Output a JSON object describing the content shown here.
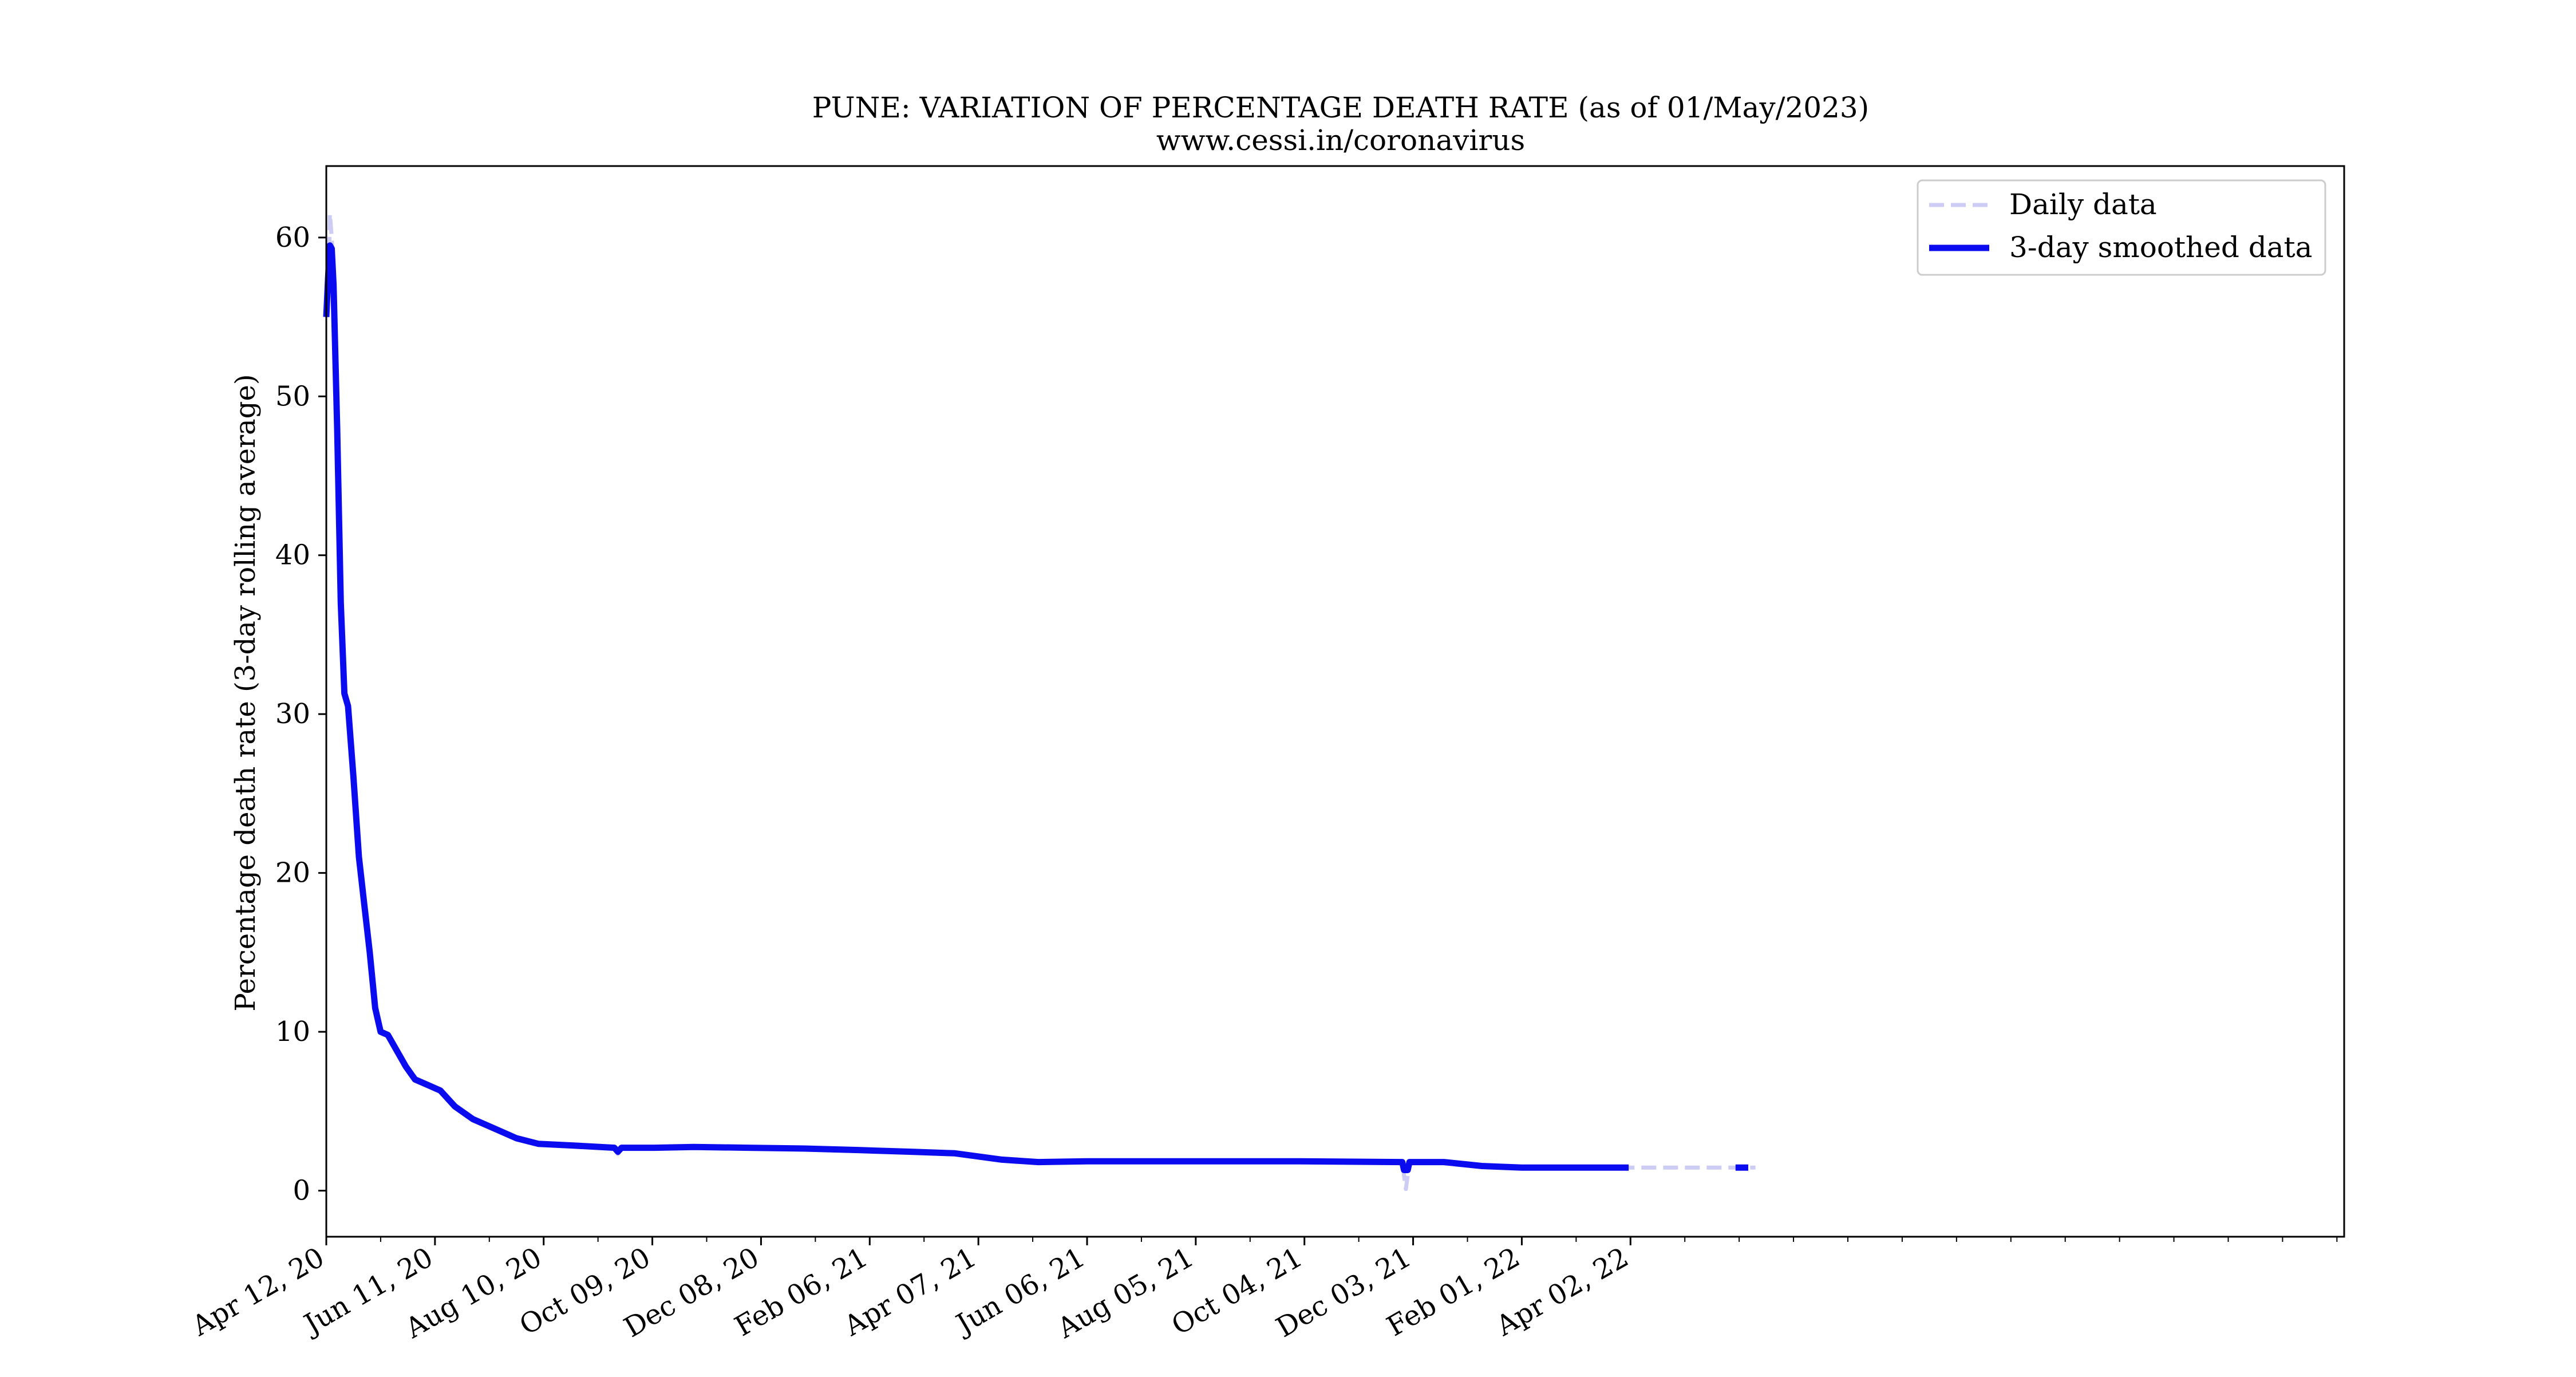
{
  "chart_data": {
    "type": "line",
    "title": "PUNE: VARIATION OF PERCENTAGE DEATH RATE (as of 01/May/2023)",
    "subtitle": "www.cessi.in/coronavirus",
    "xlabel": "",
    "ylabel": "Percentage death rate (3-day rolling average)",
    "x_tick_labels": [
      "Apr 12, 20",
      "Jun 11, 20",
      "Aug 10, 20",
      "Oct 09, 20",
      "Dec 08, 20",
      "Feb 06, 21",
      "Apr 07, 21",
      "Jun 06, 21",
      "Aug 05, 21",
      "Oct 04, 21",
      "Dec 03, 21",
      "Feb 01, 22",
      "Apr 02, 22"
    ],
    "x_tick_dates": [
      "2020-04-12",
      "2020-06-11",
      "2020-08-10",
      "2020-10-09",
      "2020-12-08",
      "2021-02-06",
      "2021-04-07",
      "2021-06-06",
      "2021-08-05",
      "2021-10-04",
      "2021-12-03",
      "2022-02-01",
      "2022-04-02"
    ],
    "xlim": [
      "2020-04-12",
      "2023-05-01"
    ],
    "ylim": [
      -2.9,
      64.5
    ],
    "y_ticks": [
      0,
      10,
      20,
      30,
      40,
      50,
      60
    ],
    "grid": false,
    "legend": "top-right",
    "series": [
      {
        "name": "Daily data",
        "color": "#ccccf5",
        "style": "dashed",
        "points": [
          [
            "2020-04-12",
            55
          ],
          [
            "2020-04-13",
            56
          ],
          [
            "2020-04-14",
            61.5
          ],
          [
            "2020-04-15",
            60
          ],
          [
            "2020-04-16",
            58
          ],
          [
            "2020-04-18",
            47
          ],
          [
            "2020-04-20",
            36
          ],
          [
            "2020-04-22",
            31.5
          ],
          [
            "2020-04-24",
            30.5
          ],
          [
            "2020-04-27",
            26
          ],
          [
            "2020-04-30",
            21
          ],
          [
            "2020-05-03",
            18
          ],
          [
            "2020-05-06",
            15
          ],
          [
            "2020-05-09",
            11.5
          ],
          [
            "2020-05-12",
            10
          ],
          [
            "2020-05-16",
            9.8
          ],
          [
            "2020-05-21",
            8.8
          ],
          [
            "2020-05-26",
            7.8
          ],
          [
            "2020-05-31",
            7.0
          ],
          [
            "2020-06-06",
            6.7
          ],
          [
            "2020-06-14",
            6.3
          ],
          [
            "2020-06-22",
            5.3
          ],
          [
            "2020-07-02",
            4.5
          ],
          [
            "2020-07-14",
            3.9
          ],
          [
            "2020-07-26",
            3.3
          ],
          [
            "2020-08-07",
            2.95
          ],
          [
            "2020-08-25",
            2.85
          ],
          [
            "2020-09-10",
            2.75
          ],
          [
            "2020-09-18",
            2.7
          ],
          [
            "2020-09-20",
            2.3
          ],
          [
            "2020-09-22",
            2.7
          ],
          [
            "2020-10-10",
            2.7
          ],
          [
            "2020-11-01",
            2.75
          ],
          [
            "2020-12-01",
            2.7
          ],
          [
            "2021-01-01",
            2.65
          ],
          [
            "2021-02-01",
            2.55
          ],
          [
            "2021-03-01",
            2.45
          ],
          [
            "2021-03-25",
            2.35
          ],
          [
            "2021-04-20",
            1.95
          ],
          [
            "2021-05-10",
            1.8
          ],
          [
            "2021-06-06",
            1.85
          ],
          [
            "2021-08-01",
            1.85
          ],
          [
            "2021-10-01",
            1.85
          ],
          [
            "2021-11-27",
            1.8
          ],
          [
            "2021-11-29",
            0.1
          ],
          [
            "2021-12-01",
            1.8
          ],
          [
            "2021-12-20",
            1.8
          ],
          [
            "2022-01-10",
            1.55
          ],
          [
            "2022-02-01",
            1.45
          ],
          [
            "2022-04-01",
            1.45
          ],
          [
            "2022-06-10",
            1.45
          ]
        ]
      },
      {
        "name": "3-day smoothed data",
        "color": "#0b0bf0",
        "style": "solid",
        "segments": [
          [
            [
              "2020-04-12",
              55
            ],
            [
              "2020-04-13",
              57.5
            ],
            [
              "2020-04-14",
              59.5
            ],
            [
              "2020-04-15",
              59.3
            ],
            [
              "2020-04-16",
              57
            ],
            [
              "2020-04-18",
              48
            ],
            [
              "2020-04-20",
              37
            ],
            [
              "2020-04-22",
              31.3
            ],
            [
              "2020-04-24",
              30.5
            ],
            [
              "2020-04-27",
              26
            ],
            [
              "2020-04-30",
              21
            ],
            [
              "2020-05-03",
              18
            ],
            [
              "2020-05-06",
              15
            ],
            [
              "2020-05-09",
              11.5
            ],
            [
              "2020-05-12",
              10
            ],
            [
              "2020-05-16",
              9.8
            ],
            [
              "2020-05-21",
              8.8
            ],
            [
              "2020-05-26",
              7.8
            ],
            [
              "2020-05-31",
              7.0
            ],
            [
              "2020-06-06",
              6.7
            ],
            [
              "2020-06-14",
              6.3
            ],
            [
              "2020-06-22",
              5.3
            ],
            [
              "2020-07-02",
              4.5
            ],
            [
              "2020-07-14",
              3.9
            ],
            [
              "2020-07-26",
              3.3
            ],
            [
              "2020-08-07",
              2.95
            ],
            [
              "2020-08-25",
              2.85
            ],
            [
              "2020-09-10",
              2.75
            ],
            [
              "2020-09-18",
              2.7
            ],
            [
              "2020-09-20",
              2.45
            ],
            [
              "2020-09-22",
              2.7
            ],
            [
              "2020-10-10",
              2.7
            ],
            [
              "2020-11-01",
              2.75
            ],
            [
              "2020-12-01",
              2.7
            ],
            [
              "2021-01-01",
              2.65
            ],
            [
              "2021-02-01",
              2.55
            ],
            [
              "2021-03-01",
              2.45
            ],
            [
              "2021-03-25",
              2.35
            ],
            [
              "2021-04-20",
              1.95
            ],
            [
              "2021-05-10",
              1.8
            ],
            [
              "2021-06-06",
              1.85
            ],
            [
              "2021-08-01",
              1.85
            ],
            [
              "2021-10-01",
              1.85
            ],
            [
              "2021-11-27",
              1.8
            ],
            [
              "2021-11-28",
              1.3
            ],
            [
              "2021-11-30",
              1.3
            ],
            [
              "2021-12-01",
              1.8
            ],
            [
              "2021-12-20",
              1.8
            ],
            [
              "2022-01-10",
              1.55
            ],
            [
              "2022-02-01",
              1.45
            ],
            [
              "2022-04-01",
              1.45
            ]
          ],
          [
            [
              "2022-05-30",
              1.45
            ],
            [
              "2022-06-06",
              1.45
            ]
          ]
        ]
      }
    ]
  }
}
